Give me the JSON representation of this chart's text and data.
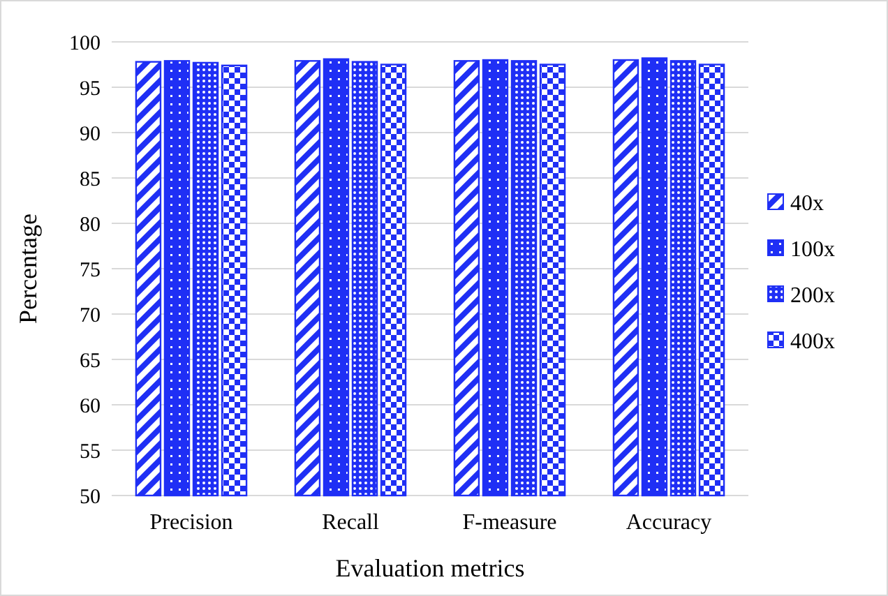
{
  "chart_data": {
    "type": "bar",
    "xlabel": "Evaluation metrics",
    "ylabel": "Percentage",
    "categories": [
      "Precision",
      "Recall",
      "F-measure",
      "Accuracy"
    ],
    "series": [
      {
        "name": "40x",
        "color": "#1f2ff5",
        "values": [
          97.8,
          97.9,
          97.9,
          98.0
        ]
      },
      {
        "name": "100x",
        "color": "#1f2ff5",
        "values": [
          97.9,
          98.1,
          98.0,
          98.2
        ]
      },
      {
        "name": "200x",
        "color": "#1f2ff5",
        "values": [
          97.7,
          97.8,
          97.9,
          97.9
        ]
      },
      {
        "name": "400x",
        "color": "#1f2ff5",
        "values": [
          97.4,
          97.5,
          97.5,
          97.5
        ]
      }
    ],
    "ylim": [
      50,
      100
    ],
    "yticks": [
      50,
      55,
      60,
      65,
      70,
      75,
      80,
      85,
      90,
      95,
      100
    ],
    "grid": "y",
    "legend": "right"
  }
}
